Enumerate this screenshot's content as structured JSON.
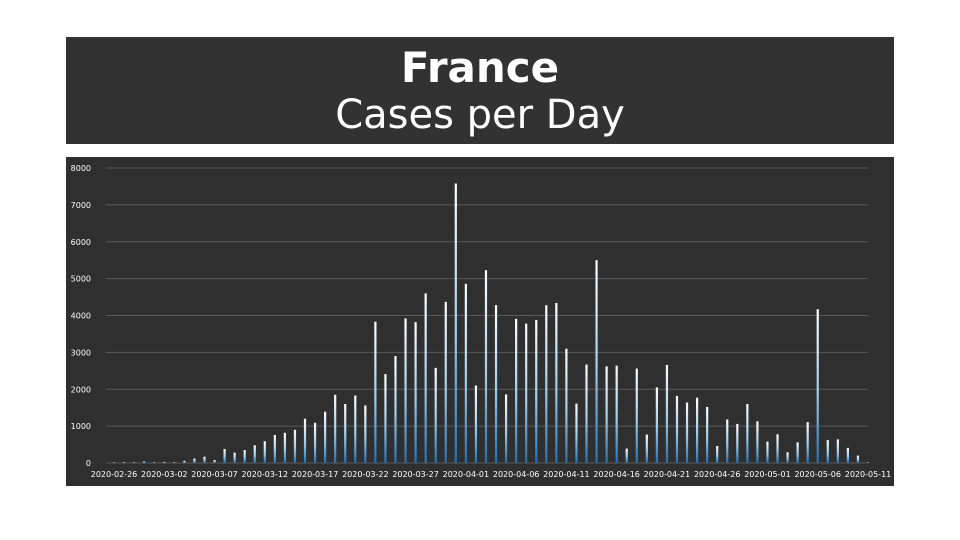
{
  "header": {
    "title": "France",
    "subtitle": "Cases per Day"
  },
  "colors": {
    "banner_bg": "#323232",
    "plot_bg": "#2f2f2f",
    "gridline": "#5a5a5a",
    "bar_top": "#ffffff",
    "bar_bottom": "#1f6fb2",
    "text": "#ffffff"
  },
  "chart_data": {
    "type": "bar",
    "title": "Cases per Day",
    "xlabel": "",
    "ylabel": "",
    "ylim": [
      0,
      8000
    ],
    "y_ticks": [
      0,
      1000,
      2000,
      3000,
      4000,
      5000,
      6000,
      7000,
      8000
    ],
    "x_tick_labels": [
      "2020-02-26",
      "2020-03-02",
      "2020-03-07",
      "2020-03-12",
      "2020-03-17",
      "2020-03-22",
      "2020-03-27",
      "2020-04-01",
      "2020-04-06",
      "2020-04-11",
      "2020-04-16",
      "2020-04-21",
      "2020-04-26",
      "2020-05-01",
      "2020-05-06",
      "2020-05-11"
    ],
    "grid": true,
    "legend": false,
    "categories": [
      "2020-02-26",
      "2020-02-27",
      "2020-02-28",
      "2020-02-29",
      "2020-03-01",
      "2020-03-02",
      "2020-03-03",
      "2020-03-04",
      "2020-03-05",
      "2020-03-06",
      "2020-03-07",
      "2020-03-08",
      "2020-03-09",
      "2020-03-10",
      "2020-03-11",
      "2020-03-12",
      "2020-03-13",
      "2020-03-14",
      "2020-03-15",
      "2020-03-16",
      "2020-03-17",
      "2020-03-18",
      "2020-03-19",
      "2020-03-20",
      "2020-03-21",
      "2020-03-22",
      "2020-03-23",
      "2020-03-24",
      "2020-03-25",
      "2020-03-26",
      "2020-03-27",
      "2020-03-28",
      "2020-03-29",
      "2020-03-30",
      "2020-03-31",
      "2020-04-01",
      "2020-04-02",
      "2020-04-03",
      "2020-04-04",
      "2020-04-05",
      "2020-04-06",
      "2020-04-07",
      "2020-04-08",
      "2020-04-09",
      "2020-04-10",
      "2020-04-11",
      "2020-04-12",
      "2020-04-13",
      "2020-04-14",
      "2020-04-15",
      "2020-04-16",
      "2020-04-17",
      "2020-04-18",
      "2020-04-19",
      "2020-04-20",
      "2020-04-21",
      "2020-04-22",
      "2020-04-23",
      "2020-04-24",
      "2020-04-25",
      "2020-04-26",
      "2020-04-27",
      "2020-04-28",
      "2020-04-29",
      "2020-04-30",
      "2020-05-01",
      "2020-05-02",
      "2020-05-03",
      "2020-05-04",
      "2020-05-05",
      "2020-05-06",
      "2020-05-07",
      "2020-05-08",
      "2020-05-09",
      "2020-05-10",
      "2020-05-11"
    ],
    "values": [
      0,
      20,
      20,
      40,
      20,
      30,
      20,
      60,
      120,
      170,
      80,
      380,
      280,
      350,
      480,
      590,
      760,
      820,
      900,
      1200,
      1090,
      1390,
      1850,
      1600,
      1830,
      1560,
      3830,
      2410,
      2900,
      3920,
      3820,
      4600,
      2580,
      4370,
      7580,
      4860,
      2100,
      5230,
      4280,
      1860,
      3910,
      3780,
      3880,
      4280,
      4340,
      3100,
      1610,
      2670,
      5500,
      2620,
      2640,
      390,
      2560,
      770,
      2050,
      2660,
      1820,
      1640,
      1770,
      1520,
      460,
      1180,
      1060,
      1600,
      1130,
      580,
      780,
      290,
      560,
      1110,
      4170,
      620,
      640,
      410,
      200,
      0
    ]
  }
}
